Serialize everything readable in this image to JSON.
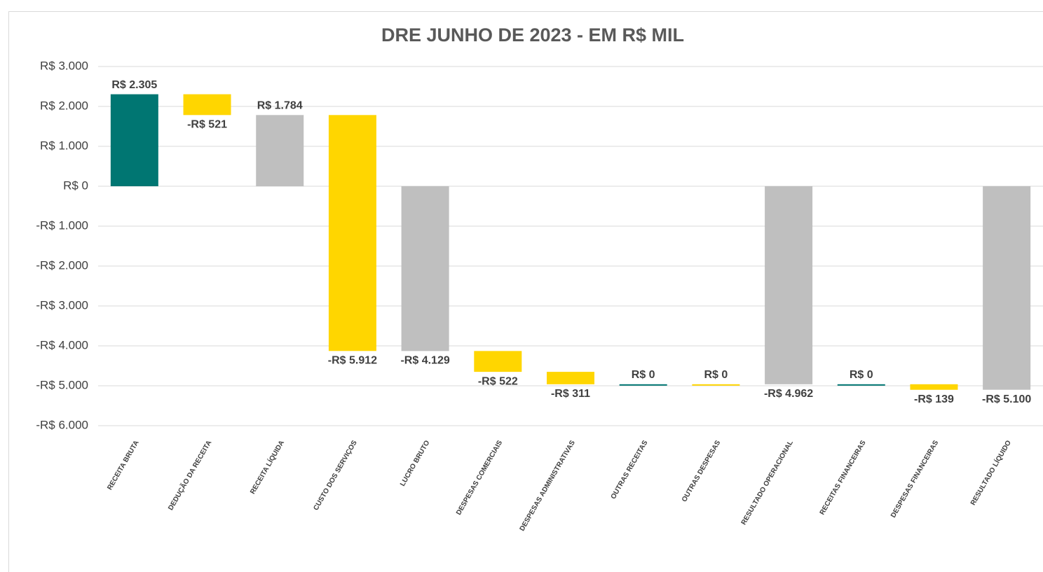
{
  "chart_data": {
    "type": "waterfall",
    "title": "DRE JUNHO DE 2023 - EM R$ MIL",
    "categories": [
      "RECEITA BRUTA",
      "DEDUÇÃO DA RECEITA",
      "RECEITA LÍQUIDA",
      "CUSTO DOS SERVIÇOS",
      "LUCRO BRUTO",
      "DESPESAS COMERCIAIS",
      "DESPESAS ADMINISTRATIVAS",
      "OUTRAS RECEITAS",
      "OUTRAS DESPESAS",
      "RESULTADO OPERACIONAL",
      "RECEITAS FINANCEIRAS",
      "DESPESAS FINANCEIRAS",
      "RESULTADO LÍQUIDO"
    ],
    "values": [
      2305,
      -521,
      1784,
      -5912,
      -4129,
      -522,
      -311,
      0,
      0,
      -4962,
      0,
      -139,
      -5100
    ],
    "value_labels": [
      "R$ 2.305",
      "-R$ 521",
      "R$ 1.784",
      "-R$ 5.912",
      "-R$ 4.129",
      "-R$ 522",
      "-R$ 311",
      "R$ 0",
      "R$ 0",
      "-R$ 4.962",
      "R$ 0",
      "-R$ 139",
      "-R$ 5.100"
    ],
    "measure": [
      "relative",
      "relative",
      "total",
      "relative",
      "total",
      "relative",
      "relative",
      "relative",
      "relative",
      "total",
      "relative",
      "relative",
      "total"
    ],
    "colors": [
      "#007672",
      "#ffd600",
      "#bfbfbf",
      "#ffd600",
      "#bfbfbf",
      "#ffd600",
      "#ffd600",
      "#007672",
      "#ffd600",
      "#bfbfbf",
      "#007672",
      "#ffd600",
      "#bfbfbf"
    ],
    "ylim": [
      -6000,
      3000
    ],
    "yticks": [
      {
        "value": -6000,
        "label": "-R$ 6.000"
      },
      {
        "value": -5000,
        "label": "-R$ 5.000"
      },
      {
        "value": -4000,
        "label": "-R$ 4.000"
      },
      {
        "value": -3000,
        "label": "-R$ 3.000"
      },
      {
        "value": -2000,
        "label": "-R$ 2.000"
      },
      {
        "value": -1000,
        "label": "-R$ 1.000"
      },
      {
        "value": 0,
        "label": "R$ 0"
      },
      {
        "value": 1000,
        "label": "R$ 1.000"
      },
      {
        "value": 2000,
        "label": "R$ 2.000"
      },
      {
        "value": 3000,
        "label": "R$ 3.000"
      }
    ],
    "grid": true
  }
}
